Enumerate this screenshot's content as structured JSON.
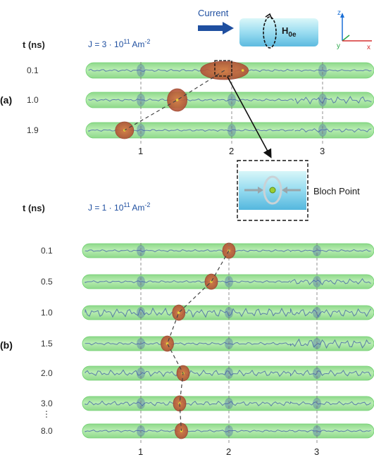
{
  "header": {
    "current_label": "Current",
    "field_label_main": "H",
    "field_label_sub": "0e",
    "axes": {
      "z": "z",
      "y": "y",
      "x": "x"
    }
  },
  "panel_a": {
    "label": "(a)",
    "time_header": "t (ns)",
    "current_density": {
      "prefix": "J = 3 · 10",
      "exponent": "11",
      "unit": " Am",
      "unit_exp": "-2"
    },
    "rows": [
      {
        "time": "0.1",
        "wall_position": 1.92
      },
      {
        "time": "1.0",
        "wall_position": 1.4
      },
      {
        "time": "1.9",
        "wall_position": 0.82
      }
    ],
    "position_ticks": [
      "1",
      "2",
      "3"
    ]
  },
  "inset": {
    "label": "Bloch Point"
  },
  "panel_b": {
    "label": "(b)",
    "time_header": "t (ns)",
    "current_density": {
      "prefix": "J = 1 · 10",
      "exponent": "11",
      "unit": " Am",
      "unit_exp": "-2"
    },
    "rows": [
      {
        "time": "0.1",
        "wall_position": 2.0
      },
      {
        "time": "0.5",
        "wall_position": 1.8
      },
      {
        "time": "1.0",
        "wall_position": 1.43
      },
      {
        "time": "1.5",
        "wall_position": 1.3
      },
      {
        "time": "2.0",
        "wall_position": 1.48
      },
      {
        "time": "3.0",
        "wall_position": 1.44
      },
      {
        "time": "8.0",
        "wall_position": 1.46
      }
    ],
    "ellipsis": "⋮",
    "position_ticks": [
      "1",
      "2",
      "3"
    ]
  },
  "colors": {
    "wire_fill": "#a4e2a0",
    "wire_edge": "#6fcf6f",
    "wall": "#c4633f",
    "wave": "#3d5aa8",
    "dash_line": "#444444",
    "arrow": "#1f4fa0",
    "inset_fill": "#7fd4ef"
  }
}
